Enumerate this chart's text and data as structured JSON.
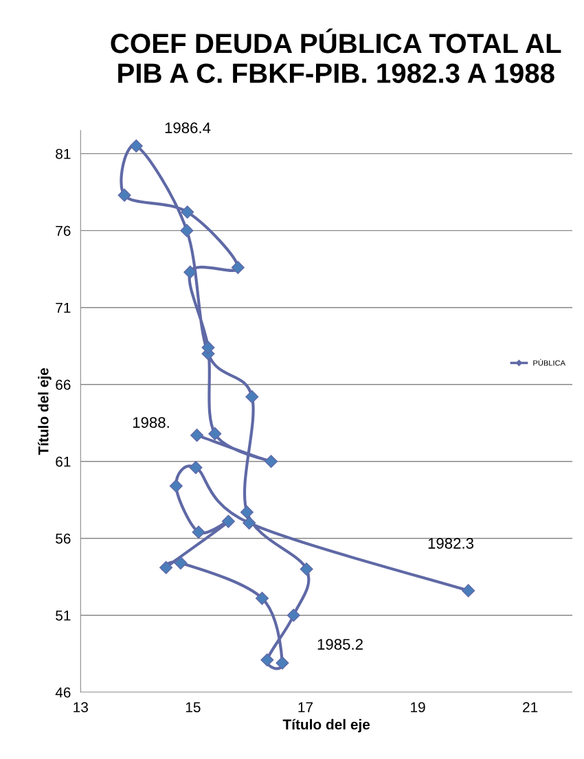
{
  "chart_data": {
    "type": "line",
    "title": "COEF DEUDA PÚBLICA TOTAL AL PIB A C. FBKF-PIB. 1982.3 A 1988",
    "xlabel": "Título del eje",
    "ylabel": "Título del eje",
    "series": [
      {
        "name": "PÚBLICA",
        "color": "#5f69a6",
        "x": [
          19.9,
          16.0,
          15.05,
          14.7,
          15.1,
          15.63,
          14.52,
          14.78,
          16.23,
          16.59,
          16.32,
          16.79,
          17.02,
          15.96,
          16.05,
          15.27,
          14.89,
          13.99,
          13.78,
          14.9,
          15.8,
          14.95,
          15.27,
          15.39,
          16.39,
          15.07
        ],
        "values": [
          52.6,
          57.0,
          60.6,
          59.4,
          56.4,
          57.1,
          54.1,
          54.4,
          52.1,
          47.9,
          48.1,
          51.0,
          54.0,
          57.7,
          65.2,
          68.0,
          76.0,
          81.5,
          78.3,
          77.2,
          73.6,
          73.3,
          68.4,
          62.8,
          61.0,
          62.7
        ]
      }
    ],
    "annotations": [
      "1986.4",
      "1988.",
      "1982.3",
      "1985.2"
    ],
    "xlim": [
      13,
      21.75
    ],
    "xticks": [
      13,
      15,
      17,
      19,
      21
    ],
    "ylim": [
      46,
      82.5
    ],
    "yticks": [
      46,
      51,
      56,
      61,
      66,
      71,
      76,
      81
    ],
    "grid": "y",
    "legend": "right",
    "marker": "diamond",
    "line_style": "solid"
  }
}
